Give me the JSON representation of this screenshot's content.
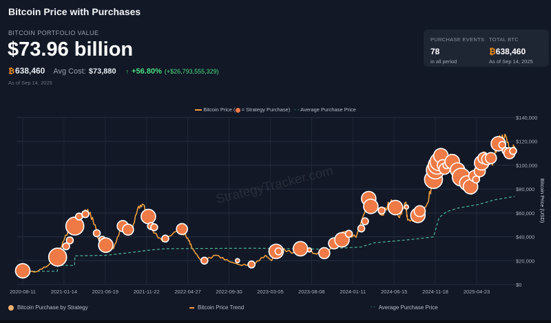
{
  "header": {
    "title": "Bitcoin Price with Purchases"
  },
  "portfolio": {
    "label": "BITCOIN PORTFOLIO VALUE",
    "value": "$73.96 billion",
    "btc_symbol": "₿",
    "btc_holdings": "638,460",
    "avg_cost_label": "Avg Cost:",
    "avg_cost": "$73,880",
    "arrow": "↑",
    "gain_pct": "+56.80%",
    "gain_abs": "(+$26,793,555,329)",
    "as_of": "As of Sep 14, 2025"
  },
  "card": {
    "events_label": "PURCHASE EVENTS",
    "events_value": "78",
    "events_sub": "in all period",
    "total_label": "TOTAL BTC",
    "total_symbol": "₿",
    "total_value": "638,460",
    "total_sub": "As of Sep 14, 2025"
  },
  "top_legend": {
    "price": "Bitcoin Price (",
    "price_tail": " = Strategy Purchase)",
    "avg": "Average Purchase Price"
  },
  "bottom_legend": {
    "purchase": "Bitcoin Purchase by Strategy",
    "trend": "Bitcoin Price Trend",
    "avg": "Average Purchase Price"
  },
  "watermark": "StrategyTracker.com",
  "colors": {
    "price": "#f0a040",
    "bubble": "#ef7a45",
    "avg": "#4fb89a",
    "btc": "#f7931a",
    "gain": "#4ade80"
  },
  "chart_data": {
    "type": "line",
    "ylabel": "Bitcoin Price (USD)",
    "ylim": [
      0,
      140000
    ],
    "yticks": [
      0,
      20000,
      40000,
      60000,
      80000,
      100000,
      120000,
      140000
    ],
    "ytick_labels": [
      "$0",
      "$20,000",
      "$40,000",
      "$60,000",
      "$80,000",
      "$100,000",
      "$120,000",
      "$140,000"
    ],
    "xticks": [
      "2020-08-11",
      "2021-01-14",
      "2021-06-19",
      "2021-11-22",
      "2022-04-27",
      "2022-09-30",
      "2023-03-05",
      "2023-08-08",
      "2024-01-11",
      "2024-06-15",
      "2024-11-18",
      "2025-04-23"
    ],
    "xlim": [
      "2020-07-20",
      "2025-09-14"
    ],
    "grid": true,
    "legend": "top",
    "series": [
      {
        "name": "Bitcoin Price",
        "points": [
          [
            "2020-08-11",
            11500
          ],
          [
            "2020-10-01",
            10700
          ],
          [
            "2020-11-15",
            16000
          ],
          [
            "2020-12-20",
            23000
          ],
          [
            "2021-01-14",
            37000
          ],
          [
            "2021-02-20",
            55000
          ],
          [
            "2021-03-15",
            58000
          ],
          [
            "2021-04-14",
            63000
          ],
          [
            "2021-05-12",
            50000
          ],
          [
            "2021-05-25",
            38000
          ],
          [
            "2021-06-20",
            33000
          ],
          [
            "2021-07-20",
            30000
          ],
          [
            "2021-08-20",
            48000
          ],
          [
            "2021-09-07",
            51000
          ],
          [
            "2021-09-25",
            42000
          ],
          [
            "2021-10-20",
            64000
          ],
          [
            "2021-11-10",
            67000
          ],
          [
            "2021-12-04",
            48000
          ],
          [
            "2022-01-22",
            36000
          ],
          [
            "2022-03-28",
            47000
          ],
          [
            "2022-04-27",
            39000
          ],
          [
            "2022-05-15",
            30000
          ],
          [
            "2022-06-18",
            19500
          ],
          [
            "2022-08-13",
            24500
          ],
          [
            "2022-09-30",
            19500
          ],
          [
            "2022-11-10",
            16500
          ],
          [
            "2022-12-30",
            16500
          ],
          [
            "2023-02-15",
            24500
          ],
          [
            "2023-03-10",
            20000
          ],
          [
            "2023-04-14",
            30000
          ],
          [
            "2023-06-15",
            25500
          ],
          [
            "2023-07-13",
            31000
          ],
          [
            "2023-08-20",
            26000
          ],
          [
            "2023-10-10",
            27500
          ],
          [
            "2023-11-10",
            37000
          ],
          [
            "2023-12-08",
            44000
          ],
          [
            "2024-01-23",
            39500
          ],
          [
            "2024-03-13",
            72000
          ],
          [
            "2024-05-01",
            58000
          ],
          [
            "2024-06-05",
            71000
          ],
          [
            "2024-07-05",
            56000
          ],
          [
            "2024-07-29",
            69000
          ],
          [
            "2024-08-05",
            54000
          ],
          [
            "2024-09-06",
            53500
          ],
          [
            "2024-10-20",
            68500
          ],
          [
            "2024-11-12",
            89000
          ],
          [
            "2024-12-17",
            106000
          ],
          [
            "2025-01-20",
            108000
          ],
          [
            "2025-02-25",
            86000
          ],
          [
            "2025-03-10",
            80000
          ],
          [
            "2025-04-08",
            76000
          ],
          [
            "2025-05-10",
            104000
          ],
          [
            "2025-05-22",
            111000
          ],
          [
            "2025-06-22",
            100000
          ],
          [
            "2025-07-14",
            122000
          ],
          [
            "2025-08-14",
            123000
          ],
          [
            "2025-09-01",
            108000
          ],
          [
            "2025-09-14",
            116000
          ]
        ]
      },
      {
        "name": "Average Purchase Price",
        "points": [
          [
            "2020-08-11",
            11100
          ],
          [
            "2020-12-20",
            11100
          ],
          [
            "2020-12-21",
            16000
          ],
          [
            "2021-02-23",
            16000
          ],
          [
            "2021-02-24",
            24000
          ],
          [
            "2021-06-20",
            24500
          ],
          [
            "2021-09-10",
            26500
          ],
          [
            "2021-12-10",
            29000
          ],
          [
            "2022-01-31",
            30000
          ],
          [
            "2023-01-01",
            30400
          ],
          [
            "2023-09-25",
            29600
          ],
          [
            "2024-02-12",
            31500
          ],
          [
            "2024-04-01",
            35000
          ],
          [
            "2024-06-20",
            36500
          ],
          [
            "2024-09-20",
            38500
          ],
          [
            "2024-11-11",
            40000
          ],
          [
            "2024-12-02",
            56000
          ],
          [
            "2024-12-30",
            61000
          ],
          [
            "2025-02-10",
            64000
          ],
          [
            "2025-04-28",
            67000
          ],
          [
            "2025-06-30",
            71000
          ],
          [
            "2025-09-14",
            73880
          ]
        ]
      }
    ],
    "purchases": [
      [
        "2020-08-11",
        11500,
        4
      ],
      [
        "2020-12-21",
        23000,
        5
      ],
      [
        "2021-01-22",
        32000,
        2
      ],
      [
        "2021-02-05",
        37000,
        2
      ],
      [
        "2021-02-24",
        49000,
        5
      ],
      [
        "2021-03-12",
        57000,
        2
      ],
      [
        "2021-04-05",
        59000,
        2
      ],
      [
        "2021-05-18",
        43000,
        2
      ],
      [
        "2021-06-08",
        37500,
        2
      ],
      [
        "2021-06-21",
        33000,
        4
      ],
      [
        "2021-08-24",
        49000,
        3
      ],
      [
        "2021-09-13",
        46000,
        3
      ],
      [
        "2021-11-29",
        57000,
        4
      ],
      [
        "2021-12-09",
        49000,
        2
      ],
      [
        "2021-12-21",
        48000,
        2
      ],
      [
        "2022-02-01",
        38500,
        2
      ],
      [
        "2022-04-05",
        46500,
        3
      ],
      [
        "2022-06-29",
        20000,
        2
      ],
      [
        "2022-11-01",
        20000,
        1
      ],
      [
        "2022-12-24",
        16800,
        2
      ],
      [
        "2023-03-27",
        27800,
        4
      ],
      [
        "2023-04-05",
        27800,
        2
      ],
      [
        "2023-06-27",
        30000,
        4
      ],
      [
        "2023-07-31",
        29000,
        1
      ],
      [
        "2023-09-25",
        26300,
        3
      ],
      [
        "2023-11-01",
        34500,
        3
      ],
      [
        "2023-12-01",
        37500,
        4
      ],
      [
        "2023-12-27",
        42500,
        2
      ],
      [
        "2024-02-12",
        47000,
        2
      ],
      [
        "2024-02-26",
        53000,
        2
      ],
      [
        "2024-03-11",
        72000,
        4
      ],
      [
        "2024-03-19",
        65500,
        4
      ],
      [
        "2024-04-29",
        62000,
        2
      ],
      [
        "2024-06-20",
        64500,
        4
      ],
      [
        "2024-08-01",
        65000,
        1
      ],
      [
        "2024-09-13",
        58000,
        4
      ],
      [
        "2024-09-20",
        61500,
        3
      ],
      [
        "2024-11-11",
        88000,
        5
      ],
      [
        "2024-11-18",
        96000,
        5
      ],
      [
        "2024-11-25",
        100000,
        5
      ],
      [
        "2024-12-02",
        103000,
        5
      ],
      [
        "2024-12-09",
        108000,
        4
      ],
      [
        "2024-12-16",
        100000,
        3
      ],
      [
        "2024-12-23",
        97000,
        3
      ],
      [
        "2024-12-30",
        100000,
        2
      ],
      [
        "2025-01-21",
        103000,
        4
      ],
      [
        "2025-02-10",
        96000,
        4
      ],
      [
        "2025-02-24",
        90000,
        5
      ],
      [
        "2025-03-17",
        85000,
        4
      ],
      [
        "2025-03-31",
        82000,
        4
      ],
      [
        "2025-04-14",
        91000,
        3
      ],
      [
        "2025-04-21",
        88000,
        2
      ],
      [
        "2025-05-05",
        95000,
        3
      ],
      [
        "2025-05-12",
        102000,
        4
      ],
      [
        "2025-05-19",
        106000,
        3
      ],
      [
        "2025-06-02",
        105000,
        3
      ],
      [
        "2025-06-16",
        106000,
        3
      ],
      [
        "2025-07-14",
        118000,
        4
      ],
      [
        "2025-07-29",
        117000,
        2
      ],
      [
        "2025-08-11",
        112000,
        2
      ],
      [
        "2025-08-25",
        110000,
        3
      ],
      [
        "2025-09-08",
        112000,
        2
      ]
    ]
  }
}
